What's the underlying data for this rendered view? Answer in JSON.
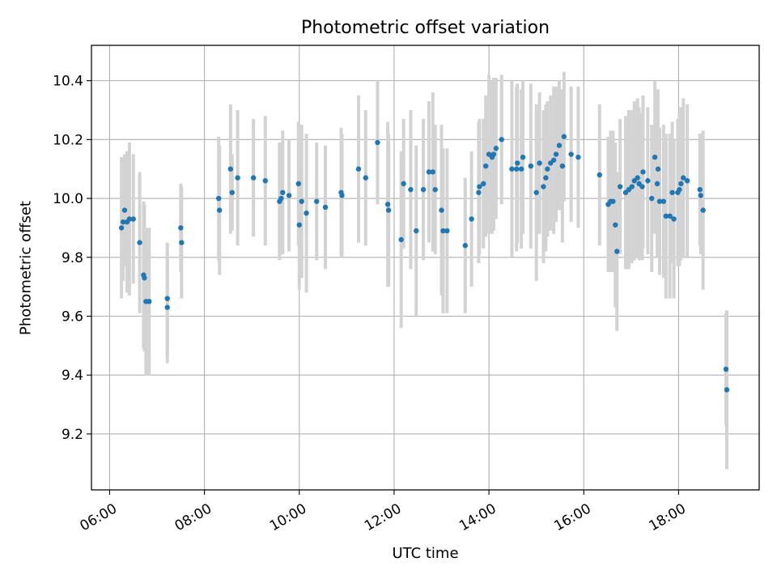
{
  "chart_data": {
    "type": "scatter",
    "title": "Photometric offset variation",
    "xlabel": "UTC time",
    "ylabel": "Photometric offset",
    "x_ticks": [
      "06:00",
      "08:00",
      "10:00",
      "12:00",
      "14:00",
      "16:00",
      "18:00"
    ],
    "y_ticks": [
      "9.2",
      "9.4",
      "9.6",
      "9.8",
      "10.0",
      "10.2",
      "10.4"
    ],
    "xlim": [
      "05:37",
      "19:42"
    ],
    "ylim": [
      9.01,
      10.52
    ],
    "grid": true,
    "colors": {
      "points": "#1f77b4",
      "errorbars": "#d3d3d3",
      "grid": "#b0b0b0"
    },
    "points": [
      {
        "t": "06:15",
        "y": 9.9,
        "err": 0.24
      },
      {
        "t": "06:17",
        "y": 9.92,
        "err": 0.2
      },
      {
        "t": "06:19",
        "y": 9.96,
        "err": 0.19
      },
      {
        "t": "06:22",
        "y": 9.92,
        "err": 0.24
      },
      {
        "t": "06:25",
        "y": 9.93,
        "err": 0.26
      },
      {
        "t": "06:30",
        "y": 9.93,
        "err": 0.22
      },
      {
        "t": "06:38",
        "y": 9.85,
        "err": 0.24
      },
      {
        "t": "06:43",
        "y": 9.74,
        "err": 0.25
      },
      {
        "t": "06:44",
        "y": 9.73,
        "err": 0.25
      },
      {
        "t": "06:46",
        "y": 9.65,
        "err": 0.25
      },
      {
        "t": "06:50",
        "y": 9.65,
        "err": 0.25
      },
      {
        "t": "07:13",
        "y": 9.63,
        "err": 0.19
      },
      {
        "t": "07:13",
        "y": 9.66,
        "err": 0.19
      },
      {
        "t": "07:30",
        "y": 9.9,
        "err": 0.15
      },
      {
        "t": "07:31",
        "y": 9.85,
        "err": 0.19
      },
      {
        "t": "08:18",
        "y": 10.0,
        "err": 0.21
      },
      {
        "t": "08:19",
        "y": 9.96,
        "err": 0.22
      },
      {
        "t": "08:33",
        "y": 10.1,
        "err": 0.22
      },
      {
        "t": "08:35",
        "y": 10.02,
        "err": 0.13
      },
      {
        "t": "08:42",
        "y": 10.07,
        "err": 0.23
      },
      {
        "t": "09:02",
        "y": 10.07,
        "err": 0.2
      },
      {
        "t": "09:17",
        "y": 10.06,
        "err": 0.22
      },
      {
        "t": "09:35",
        "y": 9.99,
        "err": 0.2
      },
      {
        "t": "09:37",
        "y": 10.0,
        "err": 0.19
      },
      {
        "t": "09:39",
        "y": 10.02,
        "err": 0.21
      },
      {
        "t": "09:47",
        "y": 10.01,
        "err": 0.19
      },
      {
        "t": "09:59",
        "y": 10.05,
        "err": 0.21
      },
      {
        "t": "10:00",
        "y": 9.91,
        "err": 0.22
      },
      {
        "t": "10:03",
        "y": 9.99,
        "err": 0.26
      },
      {
        "t": "10:09",
        "y": 9.95,
        "err": 0.27
      },
      {
        "t": "10:22",
        "y": 9.99,
        "err": 0.2
      },
      {
        "t": "10:33",
        "y": 9.97,
        "err": 0.21
      },
      {
        "t": "10:53",
        "y": 10.02,
        "err": 0.22
      },
      {
        "t": "10:54",
        "y": 10.01,
        "err": 0.21
      },
      {
        "t": "11:15",
        "y": 10.1,
        "err": 0.25
      },
      {
        "t": "11:24",
        "y": 10.07,
        "err": 0.23
      },
      {
        "t": "11:39",
        "y": 10.19,
        "err": 0.21
      },
      {
        "t": "11:52",
        "y": 9.98,
        "err": 0.28
      },
      {
        "t": "11:53",
        "y": 9.96,
        "err": 0.26
      },
      {
        "t": "12:09",
        "y": 9.86,
        "err": 0.3
      },
      {
        "t": "12:12",
        "y": 10.05,
        "err": 0.22
      },
      {
        "t": "12:21",
        "y": 10.03,
        "err": 0.27
      },
      {
        "t": "12:28",
        "y": 9.89,
        "err": 0.29
      },
      {
        "t": "12:37",
        "y": 10.03,
        "err": 0.24
      },
      {
        "t": "12:44",
        "y": 10.09,
        "err": 0.24
      },
      {
        "t": "12:49",
        "y": 10.09,
        "err": 0.27
      },
      {
        "t": "12:52",
        "y": 10.03,
        "err": 0.22
      },
      {
        "t": "13:00",
        "y": 9.96,
        "err": 0.29
      },
      {
        "t": "13:02",
        "y": 9.89,
        "err": 0.28
      },
      {
        "t": "13:07",
        "y": 9.89,
        "err": 0.28
      },
      {
        "t": "13:30",
        "y": 9.84,
        "err": 0.23
      },
      {
        "t": "13:38",
        "y": 9.93,
        "err": 0.23
      },
      {
        "t": "13:47",
        "y": 10.02,
        "err": 0.24
      },
      {
        "t": "13:48",
        "y": 10.04,
        "err": 0.23
      },
      {
        "t": "13:53",
        "y": 10.05,
        "err": 0.22
      },
      {
        "t": "13:56",
        "y": 10.11,
        "err": 0.24
      },
      {
        "t": "14:00",
        "y": 10.15,
        "err": 0.27
      },
      {
        "t": "14:04",
        "y": 10.14,
        "err": 0.26
      },
      {
        "t": "14:06",
        "y": 10.15,
        "err": 0.26
      },
      {
        "t": "14:09",
        "y": 10.17,
        "err": 0.24
      },
      {
        "t": "14:16",
        "y": 10.2,
        "err": 0.22
      },
      {
        "t": "14:29",
        "y": 10.1,
        "err": 0.3
      },
      {
        "t": "14:35",
        "y": 10.1,
        "err": 0.28
      },
      {
        "t": "14:36",
        "y": 10.12,
        "err": 0.27
      },
      {
        "t": "14:41",
        "y": 10.1,
        "err": 0.27
      },
      {
        "t": "14:43",
        "y": 10.14,
        "err": 0.26
      },
      {
        "t": "14:53",
        "y": 10.11,
        "err": 0.28
      },
      {
        "t": "15:00",
        "y": 10.02,
        "err": 0.3
      },
      {
        "t": "15:04",
        "y": 10.12,
        "err": 0.24
      },
      {
        "t": "15:09",
        "y": 10.04,
        "err": 0.26
      },
      {
        "t": "15:12",
        "y": 10.07,
        "err": 0.25
      },
      {
        "t": "15:14",
        "y": 10.1,
        "err": 0.23
      },
      {
        "t": "15:18",
        "y": 10.12,
        "err": 0.23
      },
      {
        "t": "15:22",
        "y": 10.13,
        "err": 0.25
      },
      {
        "t": "15:25",
        "y": 10.15,
        "err": 0.23
      },
      {
        "t": "15:29",
        "y": 10.18,
        "err": 0.22
      },
      {
        "t": "15:33",
        "y": 10.11,
        "err": 0.26
      },
      {
        "t": "15:35",
        "y": 10.21,
        "err": 0.22
      },
      {
        "t": "15:44",
        "y": 10.15,
        "err": 0.23
      },
      {
        "t": "15:53",
        "y": 10.14,
        "err": 0.24
      },
      {
        "t": "16:20",
        "y": 10.08,
        "err": 0.24
      },
      {
        "t": "16:31",
        "y": 9.98,
        "err": 0.23
      },
      {
        "t": "16:34",
        "y": 9.99,
        "err": 0.24
      },
      {
        "t": "16:37",
        "y": 9.99,
        "err": 0.24
      },
      {
        "t": "16:40",
        "y": 9.91,
        "err": 0.28
      },
      {
        "t": "16:42",
        "y": 9.82,
        "err": 0.27
      },
      {
        "t": "16:46",
        "y": 10.04,
        "err": 0.23
      },
      {
        "t": "16:53",
        "y": 10.02,
        "err": 0.26
      },
      {
        "t": "16:57",
        "y": 10.03,
        "err": 0.27
      },
      {
        "t": "17:01",
        "y": 10.04,
        "err": 0.26
      },
      {
        "t": "17:04",
        "y": 10.06,
        "err": 0.27
      },
      {
        "t": "17:08",
        "y": 10.07,
        "err": 0.27
      },
      {
        "t": "17:10",
        "y": 10.05,
        "err": 0.26
      },
      {
        "t": "17:14",
        "y": 10.04,
        "err": 0.25
      },
      {
        "t": "17:15",
        "y": 10.09,
        "err": 0.26
      },
      {
        "t": "17:21",
        "y": 10.06,
        "err": 0.25
      },
      {
        "t": "17:26",
        "y": 10.0,
        "err": 0.25
      },
      {
        "t": "17:30",
        "y": 10.14,
        "err": 0.26
      },
      {
        "t": "17:33",
        "y": 10.05,
        "err": 0.25
      },
      {
        "t": "17:34",
        "y": 10.1,
        "err": 0.27
      },
      {
        "t": "17:36",
        "y": 9.99,
        "err": 0.25
      },
      {
        "t": "17:41",
        "y": 9.99,
        "err": 0.26
      },
      {
        "t": "17:44",
        "y": 9.94,
        "err": 0.28
      },
      {
        "t": "17:49",
        "y": 9.94,
        "err": 0.28
      },
      {
        "t": "17:52",
        "y": 10.02,
        "err": 0.24
      },
      {
        "t": "17:54",
        "y": 9.93,
        "err": 0.27
      },
      {
        "t": "17:59",
        "y": 10.02,
        "err": 0.25
      },
      {
        "t": "18:01",
        "y": 10.03,
        "err": 0.26
      },
      {
        "t": "18:03",
        "y": 10.05,
        "err": 0.26
      },
      {
        "t": "18:06",
        "y": 10.07,
        "err": 0.27
      },
      {
        "t": "18:11",
        "y": 10.06,
        "err": 0.26
      },
      {
        "t": "18:27",
        "y": 10.03,
        "err": 0.19
      },
      {
        "t": "18:28",
        "y": 10.01,
        "err": 0.2
      },
      {
        "t": "18:31",
        "y": 9.96,
        "err": 0.27
      },
      {
        "t": "19:00",
        "y": 9.42,
        "err": 0.19
      },
      {
        "t": "19:01",
        "y": 9.35,
        "err": 0.27
      }
    ]
  }
}
